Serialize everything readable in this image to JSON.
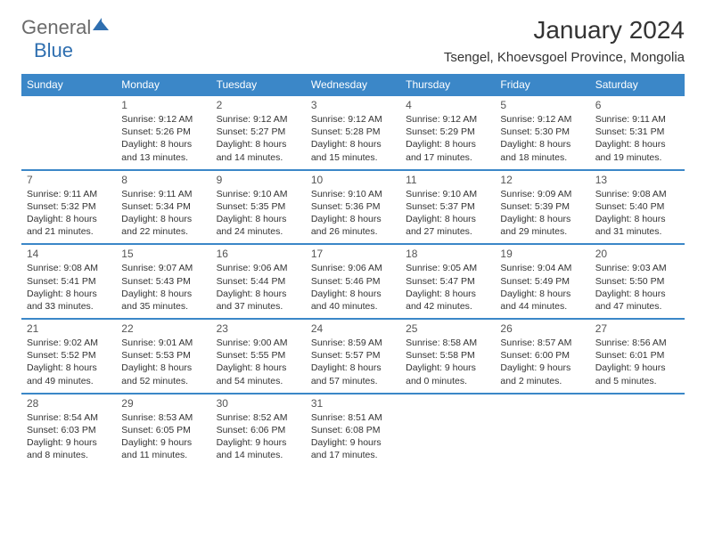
{
  "logo": {
    "text1": "General",
    "text2": "Blue"
  },
  "title": "January 2024",
  "location": "Tsengel, Khoevsgoel Province, Mongolia",
  "colors": {
    "header_bg": "#3b87c8",
    "accent": "#2f6fb0",
    "border": "#3b87c8"
  },
  "dayNames": [
    "Sunday",
    "Monday",
    "Tuesday",
    "Wednesday",
    "Thursday",
    "Friday",
    "Saturday"
  ],
  "weeks": [
    [
      null,
      {
        "n": "1",
        "sr": "Sunrise: 9:12 AM",
        "ss": "Sunset: 5:26 PM",
        "dl": "Daylight: 8 hours and 13 minutes."
      },
      {
        "n": "2",
        "sr": "Sunrise: 9:12 AM",
        "ss": "Sunset: 5:27 PM",
        "dl": "Daylight: 8 hours and 14 minutes."
      },
      {
        "n": "3",
        "sr": "Sunrise: 9:12 AM",
        "ss": "Sunset: 5:28 PM",
        "dl": "Daylight: 8 hours and 15 minutes."
      },
      {
        "n": "4",
        "sr": "Sunrise: 9:12 AM",
        "ss": "Sunset: 5:29 PM",
        "dl": "Daylight: 8 hours and 17 minutes."
      },
      {
        "n": "5",
        "sr": "Sunrise: 9:12 AM",
        "ss": "Sunset: 5:30 PM",
        "dl": "Daylight: 8 hours and 18 minutes."
      },
      {
        "n": "6",
        "sr": "Sunrise: 9:11 AM",
        "ss": "Sunset: 5:31 PM",
        "dl": "Daylight: 8 hours and 19 minutes."
      }
    ],
    [
      {
        "n": "7",
        "sr": "Sunrise: 9:11 AM",
        "ss": "Sunset: 5:32 PM",
        "dl": "Daylight: 8 hours and 21 minutes."
      },
      {
        "n": "8",
        "sr": "Sunrise: 9:11 AM",
        "ss": "Sunset: 5:34 PM",
        "dl": "Daylight: 8 hours and 22 minutes."
      },
      {
        "n": "9",
        "sr": "Sunrise: 9:10 AM",
        "ss": "Sunset: 5:35 PM",
        "dl": "Daylight: 8 hours and 24 minutes."
      },
      {
        "n": "10",
        "sr": "Sunrise: 9:10 AM",
        "ss": "Sunset: 5:36 PM",
        "dl": "Daylight: 8 hours and 26 minutes."
      },
      {
        "n": "11",
        "sr": "Sunrise: 9:10 AM",
        "ss": "Sunset: 5:37 PM",
        "dl": "Daylight: 8 hours and 27 minutes."
      },
      {
        "n": "12",
        "sr": "Sunrise: 9:09 AM",
        "ss": "Sunset: 5:39 PM",
        "dl": "Daylight: 8 hours and 29 minutes."
      },
      {
        "n": "13",
        "sr": "Sunrise: 9:08 AM",
        "ss": "Sunset: 5:40 PM",
        "dl": "Daylight: 8 hours and 31 minutes."
      }
    ],
    [
      {
        "n": "14",
        "sr": "Sunrise: 9:08 AM",
        "ss": "Sunset: 5:41 PM",
        "dl": "Daylight: 8 hours and 33 minutes."
      },
      {
        "n": "15",
        "sr": "Sunrise: 9:07 AM",
        "ss": "Sunset: 5:43 PM",
        "dl": "Daylight: 8 hours and 35 minutes."
      },
      {
        "n": "16",
        "sr": "Sunrise: 9:06 AM",
        "ss": "Sunset: 5:44 PM",
        "dl": "Daylight: 8 hours and 37 minutes."
      },
      {
        "n": "17",
        "sr": "Sunrise: 9:06 AM",
        "ss": "Sunset: 5:46 PM",
        "dl": "Daylight: 8 hours and 40 minutes."
      },
      {
        "n": "18",
        "sr": "Sunrise: 9:05 AM",
        "ss": "Sunset: 5:47 PM",
        "dl": "Daylight: 8 hours and 42 minutes."
      },
      {
        "n": "19",
        "sr": "Sunrise: 9:04 AM",
        "ss": "Sunset: 5:49 PM",
        "dl": "Daylight: 8 hours and 44 minutes."
      },
      {
        "n": "20",
        "sr": "Sunrise: 9:03 AM",
        "ss": "Sunset: 5:50 PM",
        "dl": "Daylight: 8 hours and 47 minutes."
      }
    ],
    [
      {
        "n": "21",
        "sr": "Sunrise: 9:02 AM",
        "ss": "Sunset: 5:52 PM",
        "dl": "Daylight: 8 hours and 49 minutes."
      },
      {
        "n": "22",
        "sr": "Sunrise: 9:01 AM",
        "ss": "Sunset: 5:53 PM",
        "dl": "Daylight: 8 hours and 52 minutes."
      },
      {
        "n": "23",
        "sr": "Sunrise: 9:00 AM",
        "ss": "Sunset: 5:55 PM",
        "dl": "Daylight: 8 hours and 54 minutes."
      },
      {
        "n": "24",
        "sr": "Sunrise: 8:59 AM",
        "ss": "Sunset: 5:57 PM",
        "dl": "Daylight: 8 hours and 57 minutes."
      },
      {
        "n": "25",
        "sr": "Sunrise: 8:58 AM",
        "ss": "Sunset: 5:58 PM",
        "dl": "Daylight: 9 hours and 0 minutes."
      },
      {
        "n": "26",
        "sr": "Sunrise: 8:57 AM",
        "ss": "Sunset: 6:00 PM",
        "dl": "Daylight: 9 hours and 2 minutes."
      },
      {
        "n": "27",
        "sr": "Sunrise: 8:56 AM",
        "ss": "Sunset: 6:01 PM",
        "dl": "Daylight: 9 hours and 5 minutes."
      }
    ],
    [
      {
        "n": "28",
        "sr": "Sunrise: 8:54 AM",
        "ss": "Sunset: 6:03 PM",
        "dl": "Daylight: 9 hours and 8 minutes."
      },
      {
        "n": "29",
        "sr": "Sunrise: 8:53 AM",
        "ss": "Sunset: 6:05 PM",
        "dl": "Daylight: 9 hours and 11 minutes."
      },
      {
        "n": "30",
        "sr": "Sunrise: 8:52 AM",
        "ss": "Sunset: 6:06 PM",
        "dl": "Daylight: 9 hours and 14 minutes."
      },
      {
        "n": "31",
        "sr": "Sunrise: 8:51 AM",
        "ss": "Sunset: 6:08 PM",
        "dl": "Daylight: 9 hours and 17 minutes."
      },
      null,
      null,
      null
    ]
  ]
}
